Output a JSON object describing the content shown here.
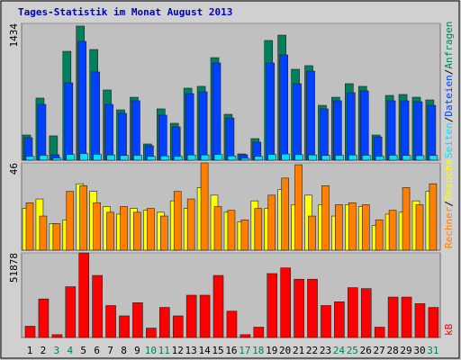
{
  "chart_data": [
    {
      "type": "bar",
      "title": "Tages-Statistik im Monat August 2013",
      "ylim": [
        0,
        1434
      ],
      "yticks": [
        1434
      ],
      "legend_separator": "/",
      "series": [
        {
          "name": "Anfragen",
          "color": "#00805c",
          "values": [
            264,
            651,
            255,
            1141,
            1406,
            1160,
            736,
            528,
            660,
            170,
            538,
            387,
            755,
            774,
            1075,
            481,
            66,
            226,
            1255,
            1311,
            953,
            991,
            575,
            660,
            802,
            774,
            264,
            679,
            689,
            660,
            632
          ]
        },
        {
          "name": "Dateien",
          "color": "#0040ff",
          "values": [
            236,
            585,
            57,
            811,
            1245,
            925,
            585,
            491,
            623,
            151,
            472,
            349,
            698,
            717,
            1019,
            443,
            57,
            189,
            1019,
            1104,
            802,
            934,
            538,
            623,
            708,
            727,
            245,
            623,
            623,
            613,
            575
          ]
        },
        {
          "name": "Seiten",
          "color": "#00e0ff",
          "values": [
            40,
            52,
            22,
            60,
            70,
            62,
            55,
            50,
            52,
            40,
            45,
            40,
            55,
            55,
            60,
            45,
            20,
            40,
            60,
            65,
            58,
            55,
            50,
            52,
            55,
            52,
            40,
            52,
            50,
            48,
            50
          ]
        }
      ]
    },
    {
      "type": "bar",
      "ylim": [
        0,
        46
      ],
      "yticks": [
        46
      ],
      "legend_separator": "/",
      "series": [
        {
          "name": "Besuche",
          "color": "#ffff00",
          "values": [
            22,
            27,
            14,
            16,
            35,
            31,
            23,
            19,
            22,
            21,
            20,
            26,
            22,
            33,
            29,
            20,
            15,
            26,
            22,
            32,
            24,
            29,
            24,
            18,
            24,
            23,
            13,
            19,
            20,
            26,
            31
          ]
        },
        {
          "name": "Rechner",
          "color": "#ff8000",
          "values": [
            25,
            18,
            14,
            31,
            34,
            25,
            20,
            23,
            20,
            22,
            18,
            31,
            27,
            46,
            23,
            21,
            16,
            22,
            29,
            38,
            45,
            18,
            34,
            24,
            25,
            24,
            16,
            21,
            33,
            24,
            35
          ]
        }
      ]
    },
    {
      "type": "bar",
      "ylim": [
        0,
        51878
      ],
      "yticks": [
        51878
      ],
      "categories": [
        "1",
        "2",
        "3",
        "4",
        "5",
        "6",
        "7",
        "8",
        "9",
        "10",
        "11",
        "12",
        "13",
        "14",
        "15",
        "16",
        "17",
        "18",
        "19",
        "20",
        "21",
        "22",
        "23",
        "24",
        "25",
        "26",
        "27",
        "28",
        "29",
        "30",
        "31"
      ],
      "category_colors": [
        "#000000",
        "#000000",
        "#00805c",
        "#00805c",
        "#000000",
        "#000000",
        "#000000",
        "#000000",
        "#000000",
        "#00805c",
        "#00805c",
        "#000000",
        "#000000",
        "#000000",
        "#000000",
        "#000000",
        "#00805c",
        "#00805c",
        "#000000",
        "#000000",
        "#000000",
        "#000000",
        "#000000",
        "#00805c",
        "#00805c",
        "#000000",
        "#000000",
        "#000000",
        "#000000",
        "#000000",
        "#00805c"
      ],
      "series": [
        {
          "name": "kB",
          "color": "#ff0000",
          "values": [
            6917,
            23632,
            1729,
            31126,
            51878,
            38043,
            19598,
            13257,
            21327,
            5764,
            18445,
            13257,
            25938,
            25938,
            38043,
            16139,
            1729,
            6340,
            39195,
            42654,
            35737,
            35737,
            19598,
            21903,
            30549,
            29973,
            6340,
            24785,
            24785,
            20750,
            18445
          ]
        }
      ]
    }
  ]
}
